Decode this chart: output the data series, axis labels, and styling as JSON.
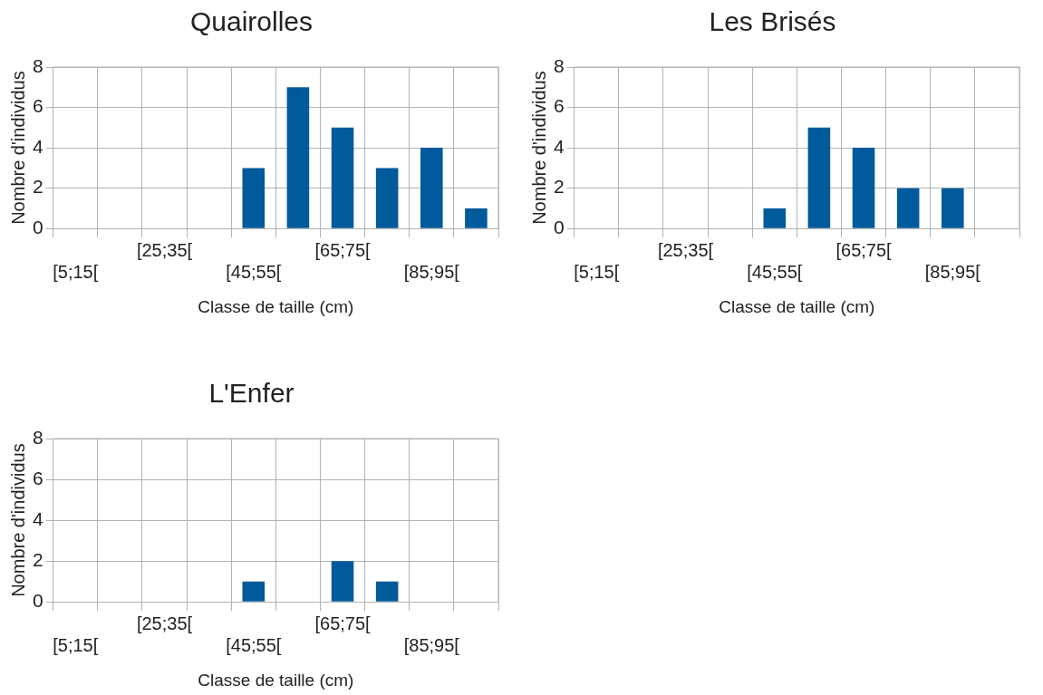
{
  "chart_data": [
    {
      "type": "bar",
      "title": "Quairolles",
      "xlabel": "Classe de taille (cm)",
      "ylabel": "Nombre d'individus",
      "categories": [
        "[5;15[",
        null,
        "[25;35[",
        null,
        "[45;55[",
        null,
        "[65;75[",
        null,
        "[85;95[",
        null
      ],
      "values": [
        0,
        0,
        0,
        0,
        3,
        7,
        5,
        3,
        4,
        1
      ],
      "color": "#005a9c",
      "ylim": [
        0,
        8
      ],
      "yticks": [
        0,
        2,
        4,
        6,
        8
      ],
      "grid": true,
      "legend": false
    },
    {
      "type": "bar",
      "title": "Les Brisés",
      "xlabel": "Classe de taille (cm)",
      "ylabel": "Nombre d'individus",
      "categories": [
        "[5;15[",
        null,
        "[25;35[",
        null,
        "[45;55[",
        null,
        "[65;75[",
        null,
        "[85;95[",
        null
      ],
      "values": [
        0,
        0,
        0,
        0,
        1,
        5,
        4,
        2,
        2,
        0
      ],
      "color": "#005a9c",
      "ylim": [
        0,
        8
      ],
      "yticks": [
        0,
        2,
        4,
        6,
        8
      ],
      "grid": true,
      "legend": false
    },
    {
      "type": "bar",
      "title": "L'Enfer",
      "xlabel": "Classe de taille (cm)",
      "ylabel": "Nombre d'individus",
      "categories": [
        "[5;15[",
        null,
        "[25;35[",
        null,
        "[45;55[",
        null,
        "[65;75[",
        null,
        "[85;95[",
        null
      ],
      "values": [
        0,
        0,
        0,
        0,
        1,
        0,
        2,
        1,
        0,
        0
      ],
      "color": "#005a9c",
      "ylim": [
        0,
        8
      ],
      "yticks": [
        0,
        2,
        4,
        6,
        8
      ],
      "grid": true,
      "legend": false
    }
  ]
}
